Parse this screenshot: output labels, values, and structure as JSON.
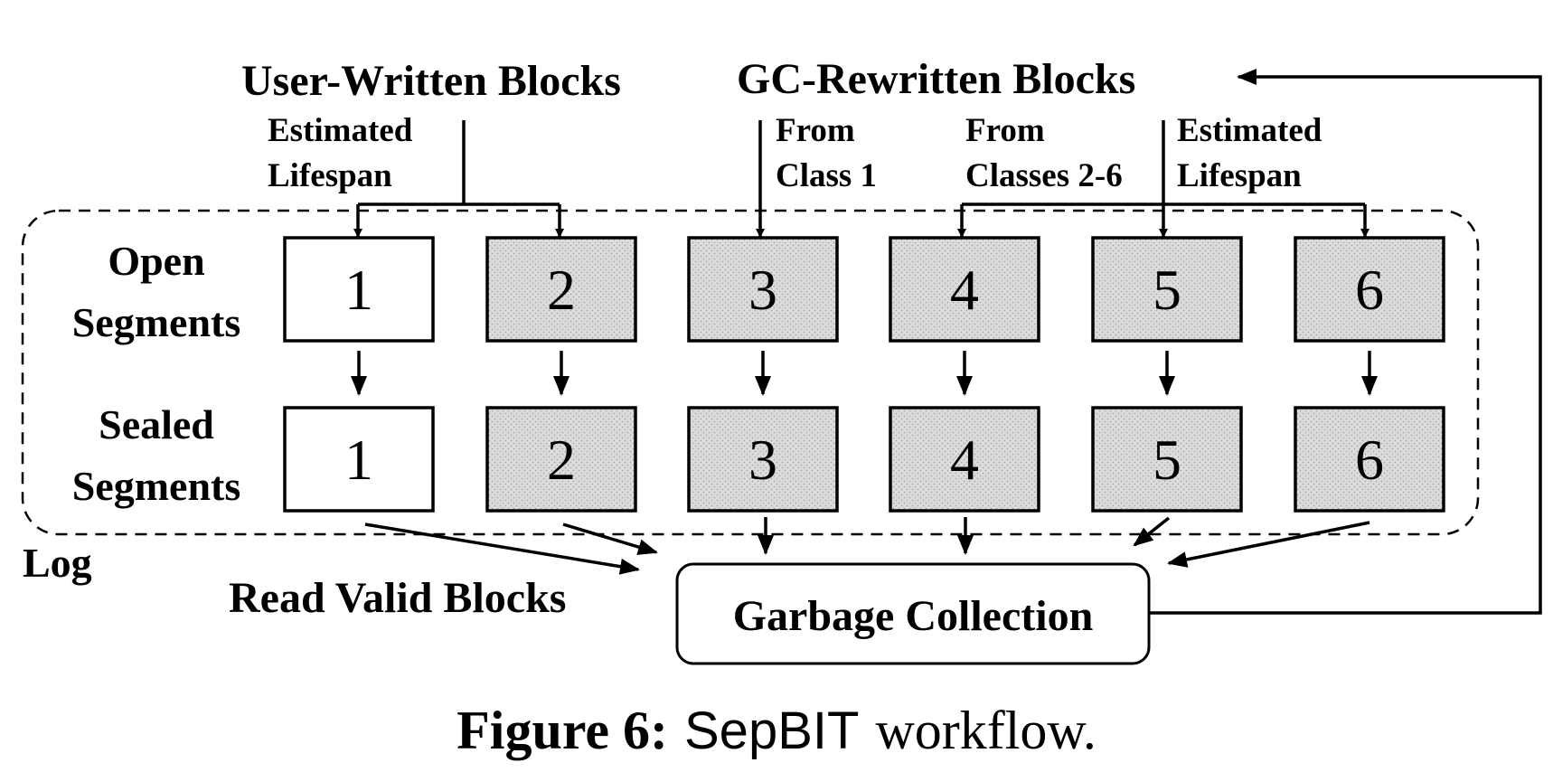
{
  "sources": {
    "user_written": "User-Written Blocks",
    "gc_rewritten": "GC-Rewritten Blocks"
  },
  "annotations": {
    "user_estimated_line1": "Estimated",
    "user_estimated_line2": "Lifespan",
    "from_class1_line1": "From",
    "from_class1_line2": "Class 1",
    "from_classes_line1": "From",
    "from_classes_line2": "Classes 2-6",
    "gc_estimated_line1": "Estimated",
    "gc_estimated_line2": "Lifespan"
  },
  "rows": {
    "open_line1": "Open",
    "open_line2": "Segments",
    "sealed_line1": "Sealed",
    "sealed_line2": "Segments"
  },
  "segments": {
    "open": [
      {
        "label": "1",
        "shaded": false
      },
      {
        "label": "2",
        "shaded": true
      },
      {
        "label": "3",
        "shaded": true
      },
      {
        "label": "4",
        "shaded": true
      },
      {
        "label": "5",
        "shaded": true
      },
      {
        "label": "6",
        "shaded": true
      }
    ],
    "sealed": [
      {
        "label": "1",
        "shaded": false
      },
      {
        "label": "2",
        "shaded": true
      },
      {
        "label": "3",
        "shaded": true
      },
      {
        "label": "4",
        "shaded": true
      },
      {
        "label": "5",
        "shaded": true
      },
      {
        "label": "6",
        "shaded": true
      }
    ]
  },
  "log_label": "Log",
  "read_valid_label": "Read Valid Blocks",
  "garbage_collection_label": "Garbage Collection",
  "caption": {
    "prefix": "Figure 6:",
    "system": "SepBIT",
    "suffix": "workflow."
  },
  "colors": {
    "shade_fill": "#d9d9d9",
    "shade_dot": "#b0b0b0",
    "stroke": "#000000"
  }
}
